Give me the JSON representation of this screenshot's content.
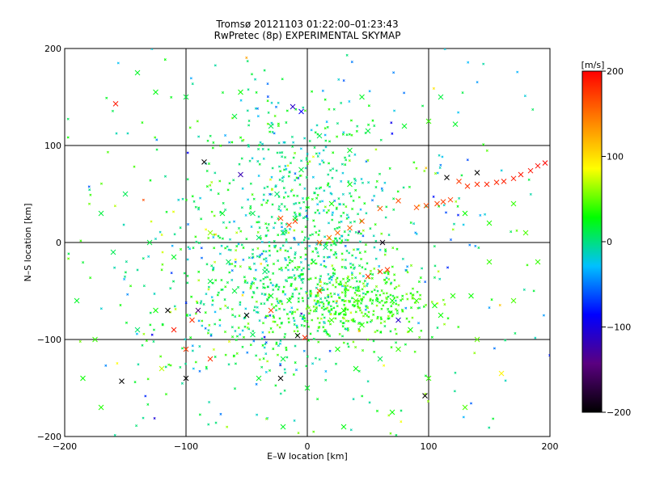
{
  "chart_data": {
    "type": "scatter",
    "title": "Tromsø 20121103 01:22:00–01:23:43",
    "subtitle": "RwPretec (8p) EXPERIMENTAL SKYMAP",
    "xlabel": "E–W location [km]",
    "ylabel": "N–S location [km]",
    "xlim": [
      -200,
      200
    ],
    "ylim": [
      -200,
      200
    ],
    "x_ticks": [
      -200,
      -100,
      0,
      100,
      200
    ],
    "y_ticks": [
      -200,
      -100,
      0,
      100,
      200
    ],
    "grid": true,
    "colorbar": {
      "label": "[m/s]",
      "range": [
        -200,
        200
      ],
      "ticks": [
        200,
        100,
        0,
        -100,
        -200
      ],
      "colors": [
        "#000000",
        "#5a0080",
        "#0000ff",
        "#00c0ff",
        "#00ff00",
        "#ffff00",
        "#ff8000",
        "#ff0000"
      ]
    },
    "series": [
      {
        "marker": "x",
        "points": [
          [
            -158,
            143,
            190
          ],
          [
            125,
            63,
            175
          ],
          [
            132,
            58,
            178
          ],
          [
            140,
            60,
            180
          ],
          [
            148,
            60,
            185
          ],
          [
            156,
            62,
            183
          ],
          [
            162,
            63,
            186
          ],
          [
            170,
            66,
            188
          ],
          [
            176,
            70,
            190
          ],
          [
            184,
            74,
            192
          ],
          [
            190,
            79,
            195
          ],
          [
            196,
            82,
            198
          ],
          [
            107,
            40,
            170
          ],
          [
            112,
            42,
            172
          ],
          [
            118,
            44,
            172
          ],
          [
            98,
            38,
            168
          ],
          [
            90,
            36,
            165
          ],
          [
            75,
            43,
            165
          ],
          [
            60,
            35,
            160
          ],
          [
            45,
            22,
            160
          ],
          [
            35,
            15,
            158
          ],
          [
            25,
            10,
            155
          ],
          [
            18,
            5,
            150
          ],
          [
            10,
            0,
            150
          ],
          [
            -10,
            22,
            170
          ],
          [
            -15,
            18,
            172
          ],
          [
            -22,
            25,
            165
          ],
          [
            50,
            -35,
            180
          ],
          [
            60,
            -30,
            175
          ],
          [
            -95,
            -80,
            180
          ],
          [
            -100,
            -110,
            175
          ],
          [
            -80,
            -120,
            178
          ],
          [
            -30,
            -70,
            170
          ],
          [
            10,
            -50,
            175
          ],
          [
            -2,
            -98,
            182
          ],
          [
            -110,
            -90,
            190
          ],
          [
            66,
            -28,
            175
          ],
          [
            115,
            67,
            -200
          ],
          [
            140,
            72,
            -200
          ],
          [
            -85,
            83,
            -200
          ],
          [
            -115,
            -70,
            -200
          ],
          [
            -100,
            -140,
            -200
          ],
          [
            -22,
            -140,
            -200
          ],
          [
            -153,
            -143,
            -200
          ],
          [
            97,
            -158,
            -200
          ],
          [
            -50,
            -75,
            -200
          ],
          [
            -90,
            -70,
            -150
          ],
          [
            -8,
            -96,
            -200
          ],
          [
            62,
            0,
            -190
          ],
          [
            -5,
            135,
            -90
          ],
          [
            -12,
            140,
            -110
          ],
          [
            75,
            -80,
            -110
          ],
          [
            -55,
            70,
            -120
          ],
          [
            122,
            122,
            20
          ],
          [
            -70,
            30,
            20
          ],
          [
            -40,
            -140,
            20
          ],
          [
            -140,
            -90,
            5
          ],
          [
            -55,
            155,
            30
          ],
          [
            45,
            150,
            20
          ],
          [
            60,
            -120,
            10
          ],
          [
            -125,
            -70,
            30
          ],
          [
            -175,
            -100,
            40
          ],
          [
            160,
            -135,
            90
          ],
          [
            -80,
            10,
            60
          ],
          [
            -120,
            -130,
            70
          ],
          [
            100,
            125,
            40
          ],
          [
            150,
            -20,
            40
          ],
          [
            105,
            -65,
            30
          ],
          [
            85,
            -90,
            30
          ],
          [
            75,
            -110,
            40
          ],
          [
            -30,
            -55,
            20
          ],
          [
            -10,
            25,
            20
          ],
          [
            30,
            -70,
            35
          ],
          [
            40,
            -60,
            45
          ],
          [
            20,
            -80,
            40
          ],
          [
            20,
            40,
            30
          ],
          [
            35,
            60,
            25
          ],
          [
            -45,
            30,
            10
          ],
          [
            -20,
            10,
            15
          ],
          [
            5,
            -20,
            20
          ],
          [
            15,
            -5,
            5
          ],
          [
            -35,
            -30,
            5
          ],
          [
            -60,
            -50,
            15
          ],
          [
            -15,
            -60,
            25
          ],
          [
            45,
            -85,
            35
          ],
          [
            70,
            -60,
            30
          ],
          [
            90,
            -60,
            40
          ],
          [
            110,
            -75,
            30
          ],
          [
            120,
            -55,
            35
          ],
          [
            135,
            -55,
            30
          ],
          [
            -5,
            75,
            15
          ],
          [
            -25,
            50,
            5
          ],
          [
            -40,
            5,
            5
          ],
          [
            -65,
            -20,
            10
          ],
          [
            -80,
            -40,
            15
          ],
          [
            -45,
            -95,
            10
          ],
          [
            -20,
            -120,
            15
          ],
          [
            0,
            -150,
            20
          ],
          [
            25,
            -110,
            30
          ],
          [
            40,
            -130,
            25
          ],
          [
            -140,
            175,
            20
          ],
          [
            -125,
            155,
            25
          ],
          [
            -100,
            150,
            15
          ],
          [
            -60,
            130,
            15
          ],
          [
            -30,
            120,
            10
          ],
          [
            10,
            110,
            10
          ],
          [
            35,
            95,
            20
          ],
          [
            50,
            115,
            15
          ],
          [
            80,
            120,
            20
          ],
          [
            110,
            150,
            15
          ],
          [
            -150,
            50,
            10
          ],
          [
            -170,
            30,
            15
          ],
          [
            -160,
            -10,
            10
          ],
          [
            -130,
            0,
            15
          ],
          [
            -110,
            -15,
            20
          ],
          [
            130,
            30,
            30
          ],
          [
            150,
            20,
            35
          ],
          [
            170,
            40,
            40
          ],
          [
            180,
            10,
            45
          ],
          [
            190,
            -20,
            40
          ],
          [
            -190,
            -60,
            20
          ],
          [
            -185,
            -140,
            30
          ],
          [
            -170,
            -170,
            35
          ],
          [
            140,
            -100,
            50
          ],
          [
            130,
            -170,
            45
          ],
          [
            100,
            -140,
            40
          ],
          [
            170,
            -60,
            45
          ],
          [
            -20,
            -190,
            20
          ],
          [
            30,
            -190,
            25
          ],
          [
            70,
            -175,
            30
          ]
        ]
      },
      {
        "marker": "dot",
        "clusters": [
          {
            "cx": -10,
            "cy": 40,
            "sx": 40,
            "sy": 55,
            "n": 420,
            "v": 5,
            "vs": 22
          },
          {
            "cx": 0,
            "cy": -40,
            "sx": 40,
            "sy": 30,
            "n": 300,
            "v": 10,
            "vs": 20
          },
          {
            "cx": 40,
            "cy": -65,
            "sx": 28,
            "sy": 18,
            "n": 280,
            "v": 40,
            "vs": 12
          },
          {
            "cx": -60,
            "cy": -80,
            "sx": 50,
            "sy": 45,
            "n": 160,
            "v": 8,
            "vs": 30
          },
          {
            "cx": 0,
            "cy": 0,
            "sx": 120,
            "sy": 120,
            "n": 520,
            "v": 5,
            "vs": 45
          }
        ]
      }
    ]
  }
}
